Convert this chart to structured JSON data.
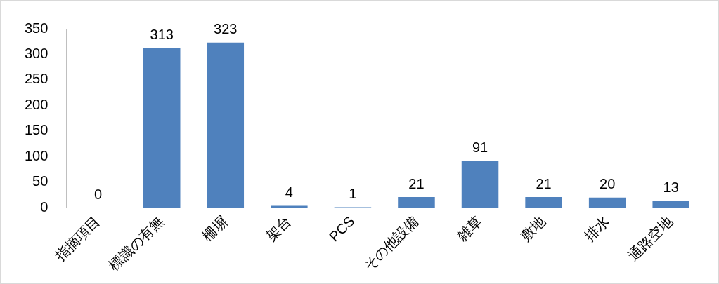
{
  "chart_data": {
    "type": "bar",
    "categories": [
      "指摘項目",
      "標識の有無",
      "柵塀",
      "架台",
      "PCS",
      "その他設備",
      "雑草",
      "敷地",
      "排水",
      "通路空地"
    ],
    "values": [
      0,
      313,
      323,
      4,
      1,
      21,
      91,
      21,
      20,
      13
    ],
    "color": "#4f81bd",
    "ylim": [
      0,
      350
    ],
    "yticks": [
      0,
      50,
      100,
      150,
      200,
      250,
      300,
      350
    ],
    "grid": false,
    "data_labels": true,
    "legend": false
  }
}
